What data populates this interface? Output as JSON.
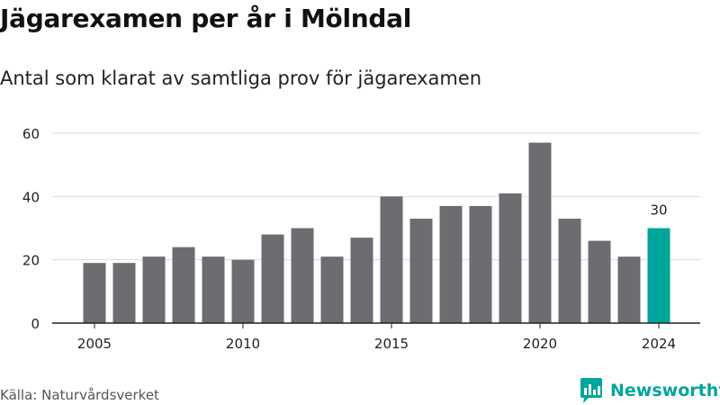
{
  "header": {
    "title": "Jägarexamen per år i Mölndal",
    "subtitle": "Antal som klarat av samtliga prov för jägarexamen"
  },
  "footer": {
    "source": "Källa: Naturvårdsverket",
    "brand": "Newsworthy"
  },
  "colors": {
    "bar": "#6d6c71",
    "highlight": "#00a59b",
    "grid": "#d9d9d9",
    "axis": "#222222",
    "text": "#222222"
  },
  "chart_data": {
    "type": "bar",
    "title": "Jägarexamen per år i Mölndal",
    "subtitle": "Antal som klarat av samtliga prov för jägarexamen",
    "xlabel": "",
    "ylabel": "",
    "categories": [
      2005,
      2006,
      2007,
      2008,
      2009,
      2010,
      2011,
      2012,
      2013,
      2014,
      2015,
      2016,
      2017,
      2018,
      2019,
      2020,
      2021,
      2022,
      2023,
      2024
    ],
    "values": [
      19,
      19,
      21,
      24,
      21,
      20,
      28,
      30,
      21,
      27,
      40,
      33,
      37,
      37,
      41,
      57,
      33,
      26,
      21,
      30
    ],
    "x_tick_labels": [
      "2005",
      "2010",
      "2015",
      "2020",
      "2024"
    ],
    "y_ticks": [
      0,
      20,
      40,
      60
    ],
    "ylim": [
      0,
      60
    ],
    "grid": true,
    "highlight": {
      "category": 2024,
      "label": "30"
    }
  }
}
